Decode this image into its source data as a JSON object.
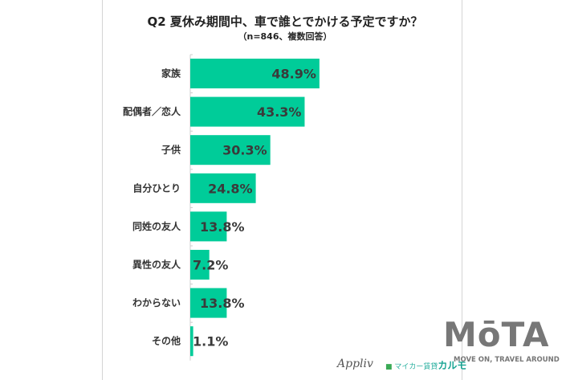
{
  "chart_data": {
    "type": "bar",
    "orientation": "horizontal",
    "title": "Q2 夏休み期間中、車で誰とでかける予定ですか？",
    "subtitle": "（n=846、複数回答）",
    "categories": [
      "家族",
      "配偶者／恋人",
      "子供",
      "自分ひとり",
      "同姓の友人",
      "異性の友人",
      "わからない",
      "その他"
    ],
    "values": [
      48.9,
      43.3,
      30.3,
      24.8,
      13.8,
      7.2,
      13.8,
      1.1
    ],
    "value_labels": [
      "48.9%",
      "43.3%",
      "30.3%",
      "24.8%",
      "13.8%",
      "7.2%",
      "13.8%",
      "1.1%"
    ],
    "xlabel": "",
    "ylabel": "",
    "xlim": [
      0,
      100
    ],
    "grid": false,
    "bar_color": "#00cc99"
  },
  "logos": {
    "applivText": "Appliv",
    "karumoPrefix": "マイカー賃貸",
    "karumoName": "カルモ",
    "mota": "MōTA",
    "motaTagline": "MOVE ON, TRAVEL AROUND"
  }
}
